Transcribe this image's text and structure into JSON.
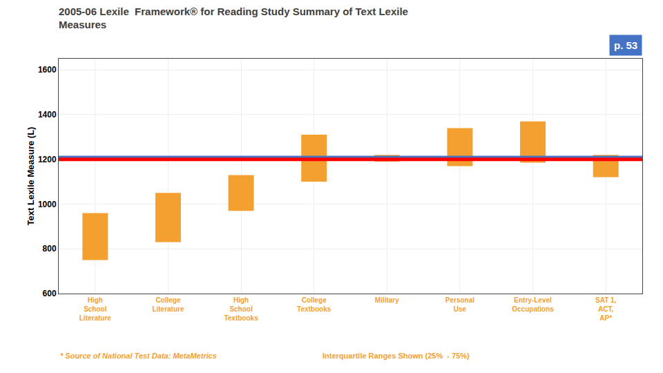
{
  "chart_data": {
    "type": "bar",
    "title": "2005-06 Lexile  Framework® for Reading Study Summary of Text Lexile\nMeasures",
    "title_color": "#404040",
    "ylabel": "Text Lexile Measure (L)",
    "categories": [
      "High\nSchool\nLiterature",
      "College\nLiterature",
      "High\nSchool\nTextbooks",
      "College\nTextbooks",
      "Military",
      "Personal\nUse",
      "Entry-Level\nOccupations",
      "SAT 1,\nACT,\nAP*"
    ],
    "q1": [
      750,
      830,
      970,
      1100,
      1190,
      1170,
      1185,
      1120
    ],
    "q3": [
      960,
      1050,
      1130,
      1310,
      1220,
      1340,
      1370,
      1220
    ],
    "color": "#F4A030",
    "ylim": [
      600,
      1650
    ],
    "yticks": [
      600,
      800,
      1000,
      1200,
      1400,
      1600
    ],
    "grid": true,
    "reference_lines": [
      {
        "value": 1208,
        "color": "#4472C4"
      },
      {
        "value": 1200,
        "color": "#FF0000"
      }
    ],
    "annotations": [
      {
        "text": "p. 53",
        "color": "#FFFFFF",
        "box_color": "#4472C4"
      },
      {
        "text": "* Source of National Test Data: MetaMetrics",
        "color": "#F4A030",
        "italic": true
      },
      {
        "text": "Interquartile Ranges Shown (25%  - 75%)",
        "color": "#F4A030"
      }
    ]
  }
}
